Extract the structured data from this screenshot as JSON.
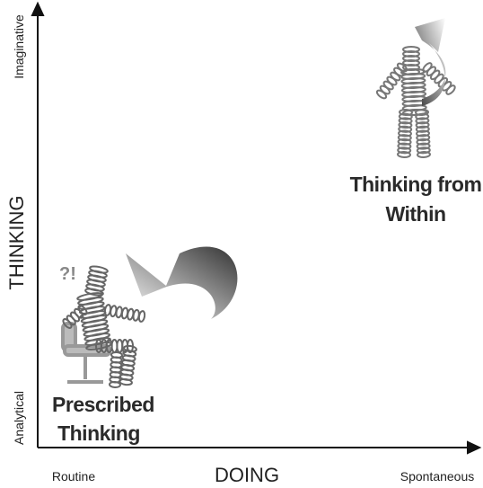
{
  "axes": {
    "y_label": "THINKING",
    "y_top": "Imaginative",
    "y_bottom": "Analytical",
    "x_label": "DOING",
    "x_left": "Routine",
    "x_right": "Spontaneous"
  },
  "quadrants": [
    {
      "lines": [
        "Thinking from",
        "Within"
      ]
    },
    {
      "lines": [
        "Prescribed",
        "Thinking"
      ]
    }
  ]
}
